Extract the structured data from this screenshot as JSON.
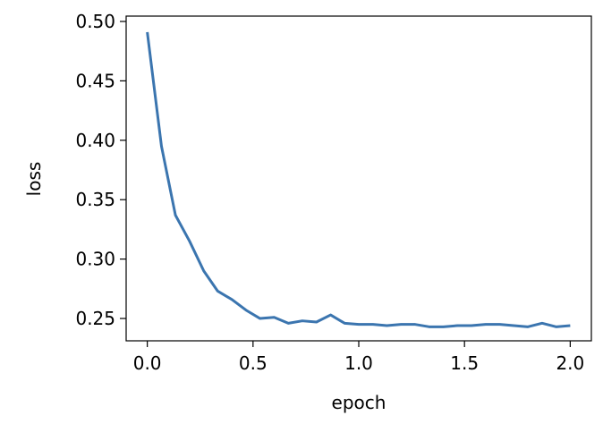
{
  "chart_data": {
    "type": "line",
    "xlabel": "epoch",
    "ylabel": "loss",
    "x": [
      0,
      0.067,
      0.133,
      0.2,
      0.267,
      0.333,
      0.4,
      0.467,
      0.533,
      0.6,
      0.667,
      0.733,
      0.8,
      0.867,
      0.933,
      1.0,
      1.067,
      1.133,
      1.2,
      1.267,
      1.333,
      1.4,
      1.467,
      1.533,
      1.6,
      1.667,
      1.733,
      1.8,
      1.867,
      1.933,
      2.0
    ],
    "series": [
      {
        "color": "#3b75af",
        "values": [
          0.491,
          0.395,
          0.337,
          0.315,
          0.29,
          0.273,
          0.266,
          0.257,
          0.25,
          0.251,
          0.246,
          0.248,
          0.247,
          0.253,
          0.246,
          0.245,
          0.245,
          0.244,
          0.245,
          0.245,
          0.243,
          0.243,
          0.244,
          0.244,
          0.245,
          0.245,
          0.244,
          0.243,
          0.246,
          0.243,
          0.244
        ]
      }
    ],
    "xlim": [
      -0.1,
      2.1
    ],
    "ylim": [
      0.2312,
      0.5045
    ],
    "xticks": [
      {
        "value": 0,
        "label": "0.0"
      },
      {
        "value": 0.5,
        "label": "0.5"
      },
      {
        "value": 1,
        "label": "1.0"
      },
      {
        "value": 1.5,
        "label": "1.5"
      },
      {
        "value": 2,
        "label": "2.0"
      }
    ],
    "yticks": [
      0.25,
      {
        "value": 0.3,
        "label": "0.30"
      },
      0.35,
      {
        "value": 0.4,
        "label": "0.40"
      },
      0.45,
      {
        "value": 0.5,
        "label": "0.50"
      }
    ]
  }
}
